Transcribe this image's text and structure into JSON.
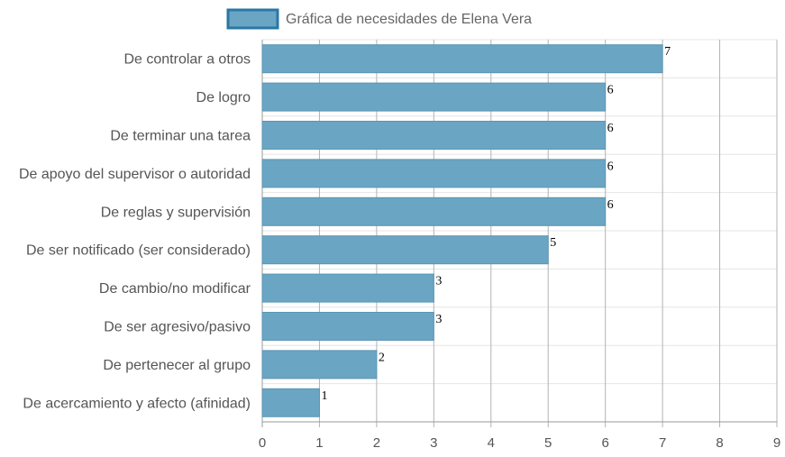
{
  "chart_data": {
    "type": "bar",
    "orientation": "horizontal",
    "categories": [
      "De controlar a otros",
      "De logro",
      "De terminar una tarea",
      "De apoyo del supervisor o autoridad",
      "De reglas y supervisión",
      "De ser notificado (ser considerado)",
      "De cambio/no modificar",
      "De ser agresivo/pasivo",
      "De pertenecer al grupo",
      "De acercamiento y afecto (afinidad)"
    ],
    "series": [
      {
        "name": "Gráfica de necesidades de Elena Vera",
        "values": [
          7,
          6,
          6,
          6,
          6,
          5,
          3,
          3,
          2,
          1
        ]
      }
    ],
    "data_labels": [
      "7",
      "6",
      "6",
      "6",
      "6",
      "5",
      "3",
      "3",
      "2",
      "1"
    ],
    "x_ticks": [
      "0",
      "1",
      "2",
      "3",
      "4",
      "5",
      "6",
      "7",
      "8",
      "9"
    ],
    "xlim": [
      0,
      9
    ],
    "xlabel": "",
    "ylabel": "",
    "grid": true,
    "legend_position": "top",
    "colors": {
      "bar_fill": "#6aa6c4",
      "bar_border": "#5b95b3",
      "legend_border": "#2a77a6",
      "grid": "#b3b3b3",
      "axis": "#999999"
    }
  }
}
